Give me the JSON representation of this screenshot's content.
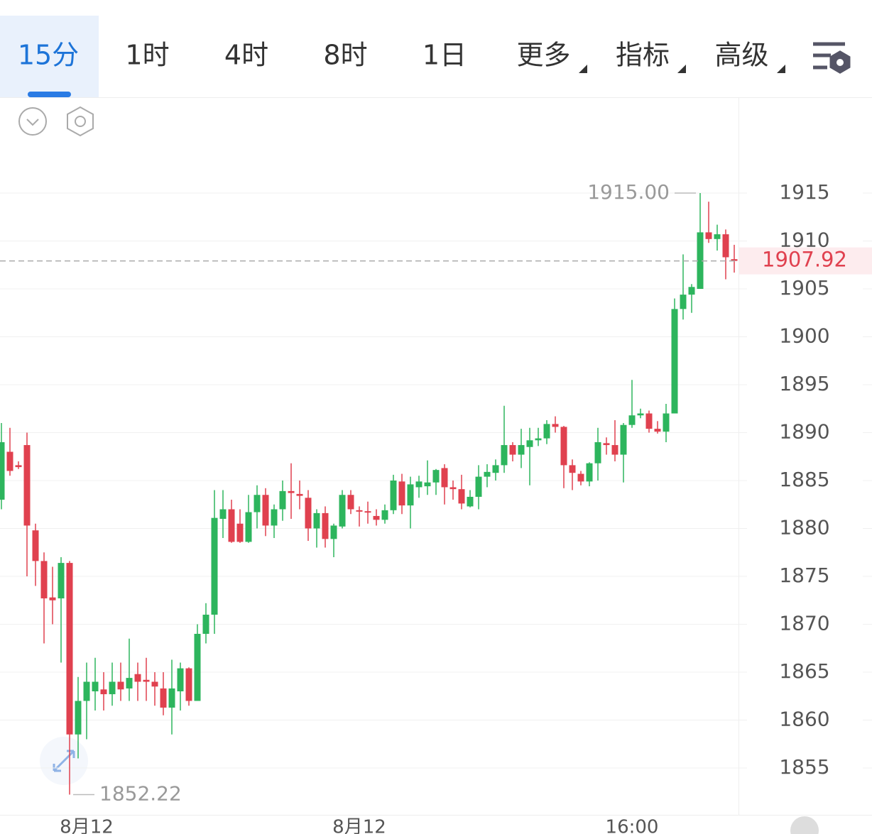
{
  "toolbar": {
    "tabs": [
      "15分",
      "1时",
      "4时",
      "8时",
      "1日",
      "更多",
      "指标",
      "高级"
    ],
    "active_tab": 0
  },
  "chart_data": {
    "type": "candlestick",
    "categories": [
      null,
      null,
      null,
      null,
      null,
      null,
      null,
      null,
      null,
      null,
      "8月12",
      null,
      null,
      null,
      null,
      null,
      null,
      null,
      null,
      null,
      null,
      null,
      null,
      null,
      null,
      null,
      null,
      null,
      null,
      null,
      null,
      null,
      null,
      null,
      null,
      null,
      null,
      null,
      null,
      null,
      null,
      null,
      "8月12",
      null,
      null,
      null,
      null,
      null,
      null,
      null,
      null,
      null,
      null,
      null,
      null,
      null,
      null,
      null,
      null,
      null,
      null,
      null,
      null,
      null,
      null,
      null,
      null,
      null,
      null,
      null,
      null,
      null,
      null,
      null,
      "16:00",
      null,
      null,
      null,
      null,
      null,
      null,
      null,
      null,
      null,
      null,
      null,
      null
    ],
    "open": [
      1883,
      1888,
      1886.6,
      1888.7,
      1879.8,
      1876.6,
      1872.8,
      1872.7,
      1876.4,
      1858.5,
      1862,
      1863,
      1863.2,
      1862.7,
      1864,
      1863.3,
      1864.8,
      1864.2,
      1864,
      1863.3,
      1861.3,
      1863,
      1865.4,
      1862,
      1869,
      1871,
      1881,
      1882,
      1880.5,
      1878.6,
      1881.7,
      1883.5,
      1880.3,
      1882,
      1883.9,
      1883.6,
      1883.2,
      1880,
      1881.6,
      1878.9,
      1880.2,
      1883.5,
      1881.9,
      1881.8,
      1881.3,
      1880.9,
      1881.9,
      1884.9,
      1882.4,
      1884.3,
      1884.4,
      1884.8,
      1886.3,
      1884.3,
      1884.1,
      1882.3,
      1883.3,
      1885.4,
      1885.8,
      1886.6,
      1888.7,
      1887.7,
      1888.5,
      1889.2,
      1889.4,
      1890.9,
      1890.6,
      1886.6,
      1885.7,
      1884.9,
      1886.8,
      1888.9,
      1888.7,
      1887.7,
      1890.8,
      1891.8,
      1892,
      1890.4,
      1890.1,
      1892,
      1902.9,
      1904.4,
      1905,
      1910.9,
      1910.2,
      1910.7,
      1908.1
    ],
    "high": [
      1891,
      1890.5,
      1887,
      1890,
      1880.5,
      1877.5,
      1876,
      1877,
      1876.6,
      1864.5,
      1866,
      1866.5,
      1865,
      1866,
      1866,
      1868.5,
      1866,
      1866.5,
      1865,
      1865,
      1866.3,
      1866,
      1865.5,
      1870,
      1872.2,
      1884,
      1884,
      1883,
      1882,
      1883.5,
      1884.5,
      1884.2,
      1882.5,
      1885,
      1886.8,
      1885,
      1884,
      1882,
      1882.3,
      1880.5,
      1884,
      1884,
      1882.3,
      1882.8,
      1882,
      1882.5,
      1885.6,
      1885.7,
      1885.4,
      1885.5,
      1887.1,
      1886.2,
      1886.7,
      1885,
      1885.6,
      1884,
      1886.6,
      1886.7,
      1887.2,
      1892.8,
      1889,
      1890.4,
      1890.5,
      1890.5,
      1891.3,
      1891.7,
      1890.7,
      1887.2,
      1886,
      1886.9,
      1890.5,
      1889.5,
      1891.3,
      1891,
      1895.5,
      1892.5,
      1892.3,
      1891.2,
      1893,
      1904,
      1908.6,
      1905.5,
      1915,
      1914.1,
      1911.7,
      1911.2,
      1909.6
    ],
    "low": [
      1882,
      1885.5,
      1886.2,
      1875,
      1874,
      1868,
      1870,
      1866,
      1852.22,
      1856,
      1858,
      1861,
      1861,
      1861.5,
      1862,
      1862,
      1862,
      1862,
      1861.5,
      1860.5,
      1858.5,
      1861,
      1861.5,
      1862,
      1868,
      1869,
      1879,
      1878.5,
      1878.5,
      1878.5,
      1880,
      1879.2,
      1879,
      1880.8,
      1881,
      1882,
      1878.7,
      1878,
      1878,
      1877,
      1880,
      1881.5,
      1880.2,
      1880.5,
      1880.3,
      1880.5,
      1881.5,
      1881.5,
      1880,
      1883.2,
      1883.5,
      1883.5,
      1882.5,
      1883,
      1882,
      1882.2,
      1882,
      1884.3,
      1885,
      1885.8,
      1887,
      1886.3,
      1884.5,
      1888.6,
      1888.8,
      1890,
      1884.2,
      1884,
      1884.5,
      1884.4,
      1885,
      1887.7,
      1887,
      1884.8,
      1890.5,
      1891.5,
      1890,
      1889.9,
      1889,
      1892,
      1901.8,
      1902.5,
      1905,
      1909.8,
      1909,
      1906,
      1906.7
    ],
    "close": [
      1889,
      1886,
      1886.4,
      1880.3,
      1876.6,
      1872.7,
      1872.5,
      1876.4,
      1858.5,
      1862,
      1864,
      1864,
      1862.7,
      1864,
      1863.2,
      1864.4,
      1864,
      1864,
      1863.5,
      1861.3,
      1863.3,
      1865.4,
      1862,
      1869,
      1871,
      1881.1,
      1882,
      1878.6,
      1878.6,
      1881.7,
      1883.5,
      1880.3,
      1882,
      1883.9,
      1883.7,
      1883.4,
      1880,
      1881.6,
      1878.9,
      1880.3,
      1883.5,
      1882,
      1881.8,
      1881.7,
      1880.9,
      1881.9,
      1885,
      1882.4,
      1884.6,
      1884.9,
      1884.8,
      1886.1,
      1884.3,
      1884.1,
      1882.6,
      1883.3,
      1885.4,
      1885.9,
      1886.6,
      1888.7,
      1887.7,
      1888.7,
      1889.2,
      1889.4,
      1890.9,
      1890.6,
      1886.6,
      1885.8,
      1884.9,
      1886.8,
      1889,
      1888.7,
      1887.7,
      1890.8,
      1891.8,
      1892,
      1890.4,
      1890.1,
      1892,
      1902.9,
      1904.4,
      1905.2,
      1910.9,
      1910.2,
      1910.7,
      1908.3,
      1907.92
    ],
    "up_color": "#2db55d",
    "down_color": "#e0414f",
    "ylim": [
      1850,
      1925
    ],
    "yticks": [
      1855,
      1860,
      1865,
      1870,
      1875,
      1880,
      1885,
      1890,
      1895,
      1900,
      1905,
      1910,
      1915
    ],
    "grid": true,
    "high_marker": {
      "value": 1915,
      "label": "1915.00"
    },
    "low_marker": 1852.22,
    "last_price": 1907.92
  }
}
